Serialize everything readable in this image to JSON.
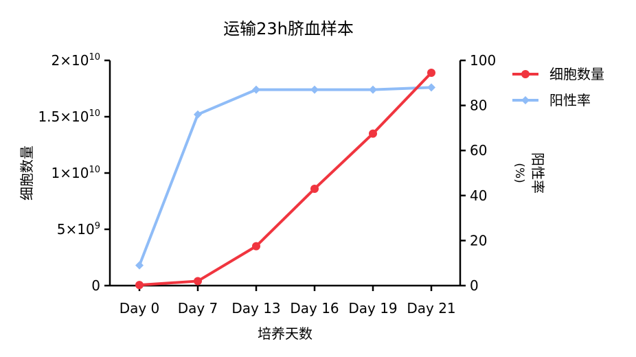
{
  "chart_data": {
    "type": "line",
    "title": "运输23h脐血样本",
    "xlabel": "培养天数",
    "ylabel_left": "细胞数量",
    "ylabel_right_main": "阳性率",
    "ylabel_right_unit": "(%)",
    "categories": [
      "Day 0",
      "Day 7",
      "Day 13",
      "Day 16",
      "Day 19",
      "Day 21"
    ],
    "left_axis": {
      "ylim": [
        0,
        20000000000
      ],
      "ticks": [
        {
          "value": 0,
          "base": "0",
          "exp": ""
        },
        {
          "value": 5000000000,
          "base": "5×10",
          "exp": "9"
        },
        {
          "value": 10000000000,
          "base": "1×10",
          "exp": "10"
        },
        {
          "value": 15000000000,
          "base": "1.5×10",
          "exp": "10"
        },
        {
          "value": 20000000000,
          "base": "2×10",
          "exp": "10"
        }
      ]
    },
    "right_axis": {
      "ylim": [
        0,
        100
      ],
      "ticks": [
        "0",
        "20",
        "40",
        "60",
        "80",
        "100"
      ]
    },
    "series": [
      {
        "name": "细胞数量",
        "axis": "left",
        "color": "#f0353f",
        "marker": "circle",
        "values": [
          50000000,
          400000000,
          3500000000,
          8600000000,
          13500000000,
          18900000000
        ]
      },
      {
        "name": "阳性率",
        "axis": "right",
        "color": "#8fbcf7",
        "marker": "diamond",
        "values": [
          9,
          76,
          87,
          87,
          87,
          88
        ]
      }
    ],
    "legend": "top-right",
    "grid": false
  }
}
